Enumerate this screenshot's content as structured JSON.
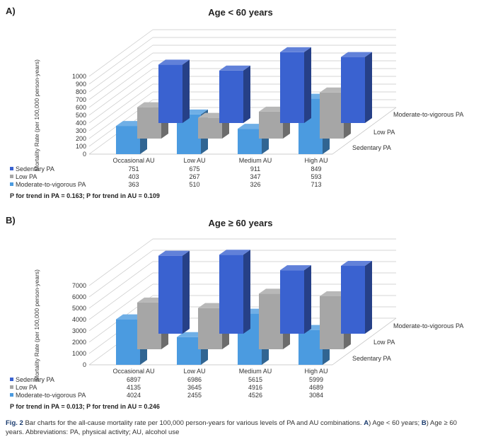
{
  "chart_data": [
    {
      "type": "bar",
      "panel_label": "A)",
      "title": "Age < 60 years",
      "ylabel": "Mortality Rate (per 100,000 person-years)",
      "ylim": [
        0,
        1000
      ],
      "yticks": [
        "0",
        "100",
        "200",
        "300",
        "400",
        "500",
        "600",
        "700",
        "800",
        "900",
        "1000"
      ],
      "categories": [
        "Occasional AU",
        "Low AU",
        "Medium AU",
        "High AU"
      ],
      "series": [
        {
          "name": "Sedentary PA",
          "values": [
            751,
            675,
            911,
            849
          ],
          "color": "#3a62d0"
        },
        {
          "name": "Low PA",
          "values": [
            403,
            267,
            347,
            593
          ],
          "color": "#a6a6a6"
        },
        {
          "name": "Moderate-to-vigorous PA",
          "values": [
            363,
            510,
            326,
            713
          ],
          "color": "#4b9be0"
        }
      ],
      "table_values": [
        [
          "751",
          "675",
          "911",
          "849"
        ],
        [
          "403",
          "267",
          "347",
          "593"
        ],
        [
          "363",
          "510",
          "326",
          "713"
        ]
      ],
      "trend_text": "P for trend in PA = 0.163; P for trend in AU = 0.109",
      "grid": true
    },
    {
      "type": "bar",
      "panel_label": "B)",
      "title": "Age ≥ 60 years",
      "ylabel": "Mortality Rate (per 100,000 person-years)",
      "ylim": [
        0,
        7000
      ],
      "yticks": [
        "0",
        "1000",
        "2000",
        "3000",
        "4000",
        "5000",
        "6000",
        "7000"
      ],
      "categories": [
        "Occasional AU",
        "Low AU",
        "Medium AU",
        "High AU"
      ],
      "series": [
        {
          "name": "Sedentary PA",
          "values": [
            6897,
            6986,
            5615,
            5999
          ],
          "color": "#3a62d0"
        },
        {
          "name": "Low PA",
          "values": [
            4135,
            3645,
            4916,
            4689
          ],
          "color": "#a6a6a6"
        },
        {
          "name": "Moderate-to-vigorous PA",
          "values": [
            4024,
            2455,
            4526,
            3084
          ],
          "color": "#4b9be0"
        }
      ],
      "table_values": [
        [
          "6897",
          "6986",
          "5615",
          "5999"
        ],
        [
          "4135",
          "3645",
          "4916",
          "4689"
        ],
        [
          "4024",
          "2455",
          "4526",
          "3084"
        ]
      ],
      "trend_text": "P for trend in PA = 0.013; P for trend in AU = 0.246",
      "grid": true
    }
  ],
  "caption": {
    "fig_label": "Fig. 2",
    "text_1": " Bar charts for the all-cause mortality rate per 100,000 person-years for various levels of PA and AU combinations. ",
    "a_label": "A",
    "text_2": ") Age < 60 years; ",
    "b_label": "B",
    "text_3": ") Age ≥ 60 years. Abbreviations: PA, physical activity; AU, alcohol use"
  }
}
